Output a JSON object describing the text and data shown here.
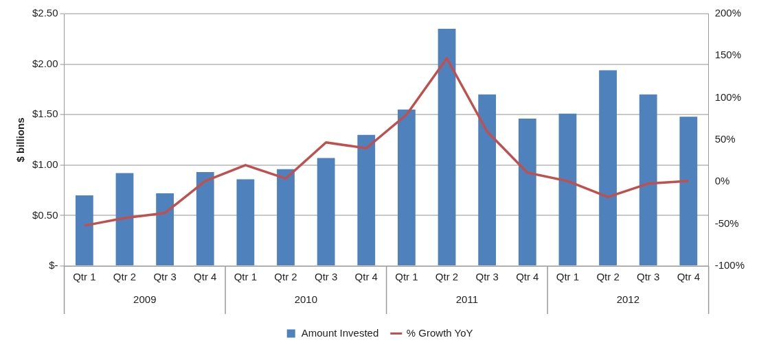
{
  "chart_data": {
    "type": "bar",
    "ylabel": "$ billions",
    "categories": [
      "Qtr 1",
      "Qtr 2",
      "Qtr 3",
      "Qtr 4",
      "Qtr 1",
      "Qtr 2",
      "Qtr 3",
      "Qtr 4",
      "Qtr 1",
      "Qtr 2",
      "Qtr 3",
      "Qtr 4",
      "Qtr 1",
      "Qtr 2",
      "Qtr 3",
      "Qtr 4"
    ],
    "series": [
      {
        "name": "Amount Invested",
        "color": "#4f81bd",
        "values": [
          0.7,
          0.92,
          0.72,
          0.93,
          0.86,
          0.96,
          1.07,
          1.3,
          1.55,
          2.35,
          1.7,
          1.46,
          1.51,
          1.94,
          1.7,
          1.48
        ]
      },
      {
        "name": "% Growth YoY",
        "type": "line",
        "axis": "y2",
        "color": "#c0504d",
        "values": [
          -52,
          -43,
          -37,
          1,
          20,
          4,
          47,
          40,
          80,
          147,
          60,
          11,
          1,
          -18,
          -2,
          1
        ]
      }
    ],
    "ylim": [
      0,
      2.5
    ],
    "yticks": [
      {
        "value": 0,
        "label": "$-"
      },
      {
        "value": 0.5,
        "label": "$0.50"
      },
      {
        "value": 1,
        "label": "$1.00"
      },
      {
        "value": 1.5,
        "label": "$1.50"
      },
      {
        "value": 2,
        "label": "$2.00"
      },
      {
        "value": 2.5,
        "label": "$2.50"
      }
    ],
    "y2lim": [
      -100,
      200
    ],
    "y2ticks": [
      {
        "value": -100,
        "label": "-100%"
      },
      {
        "value": -50,
        "label": "-50%"
      },
      {
        "value": 0,
        "label": "0%"
      },
      {
        "value": 50,
        "label": "50%"
      },
      {
        "value": 100,
        "label": "100%"
      },
      {
        "value": 150,
        "label": "150%"
      },
      {
        "value": 200,
        "label": "200%"
      }
    ],
    "annotations": [
      "2009",
      "2010",
      "2011",
      "2012"
    ],
    "grid": "y",
    "legend": "bottom",
    "marker": "none",
    "line_style": "solid"
  }
}
